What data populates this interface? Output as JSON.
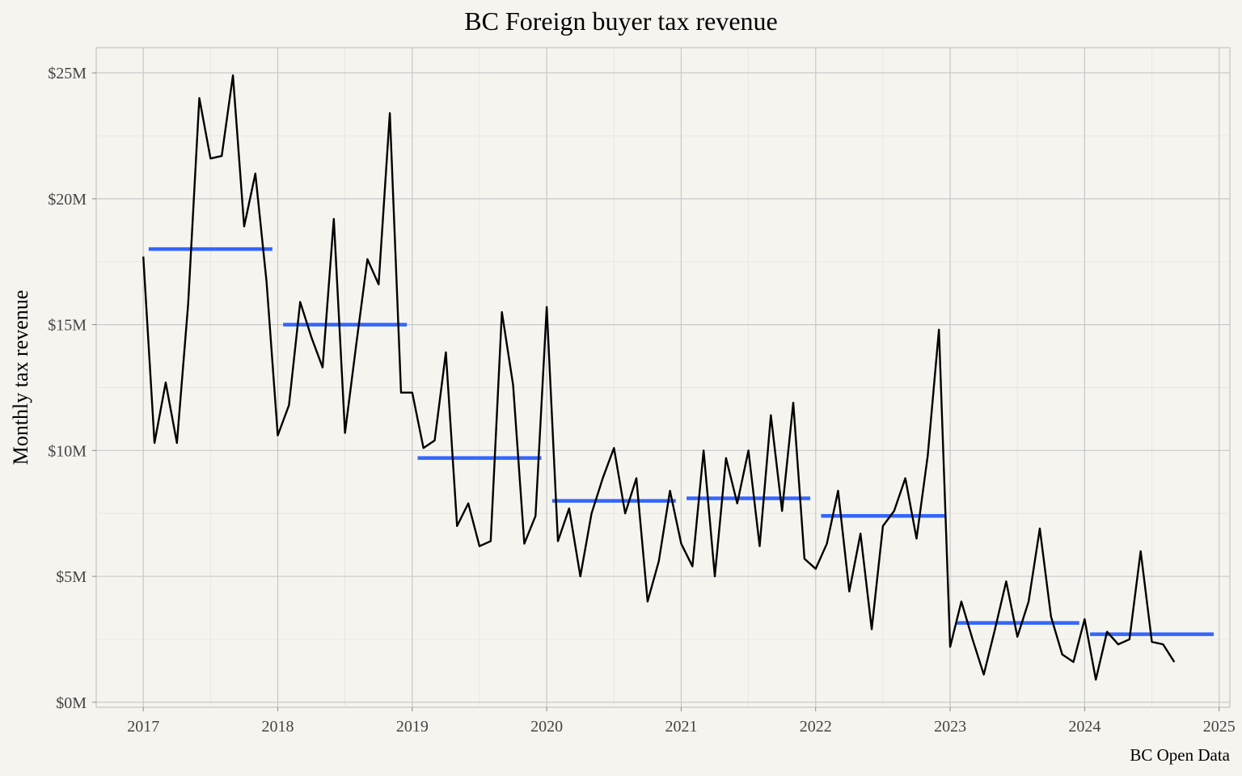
{
  "chart_data": {
    "type": "line",
    "title": "BC Foreign buyer tax revenue",
    "ylabel": "Monthly tax revenue",
    "xlabel": "",
    "caption": "BC Open Data",
    "x_ticks": [
      "2017",
      "2018",
      "2019",
      "2020",
      "2021",
      "2022",
      "2023",
      "2024",
      "2025"
    ],
    "y_ticks": [
      "$0M",
      "$5M",
      "$10M",
      "$15M",
      "$20M",
      "$25M"
    ],
    "y_tick_values": [
      0,
      5,
      10,
      15,
      20,
      25
    ],
    "xlim": [
      2016.65,
      2025.08
    ],
    "ylim": [
      -0.2,
      26.0
    ],
    "grid": true,
    "colors": {
      "line": "#000000",
      "annual_mean": "#3366ff",
      "background": "#f6f4ef",
      "grid_major": "#c8c8c8",
      "grid_minor": "#e6e4e0"
    },
    "series": [
      {
        "x": [
          "2017-01",
          "2017-02",
          "2017-03",
          "2017-04",
          "2017-05",
          "2017-06",
          "2017-07",
          "2017-08",
          "2017-09",
          "2017-10",
          "2017-11",
          "2017-12",
          "2018-01",
          "2018-02",
          "2018-03",
          "2018-04",
          "2018-05",
          "2018-06",
          "2018-07",
          "2018-08",
          "2018-09",
          "2018-10",
          "2018-11",
          "2018-12",
          "2019-01",
          "2019-02",
          "2019-03",
          "2019-04",
          "2019-05",
          "2019-06",
          "2019-07",
          "2019-08",
          "2019-09",
          "2019-10",
          "2019-11",
          "2019-12",
          "2020-01",
          "2020-02",
          "2020-03",
          "2020-04",
          "2020-05",
          "2020-06",
          "2020-07",
          "2020-08",
          "2020-09",
          "2020-10",
          "2020-11",
          "2020-12",
          "2021-01",
          "2021-02",
          "2021-03",
          "2021-04",
          "2021-05",
          "2021-06",
          "2021-07",
          "2021-08",
          "2021-09",
          "2021-10",
          "2021-11",
          "2021-12",
          "2022-01",
          "2022-02",
          "2022-03",
          "2022-04",
          "2022-05",
          "2022-06",
          "2022-07",
          "2022-08",
          "2022-09",
          "2022-10",
          "2022-11",
          "2022-12",
          "2023-01",
          "2023-02",
          "2023-03",
          "2023-04",
          "2023-05",
          "2023-06",
          "2023-07",
          "2023-08",
          "2023-09",
          "2023-10",
          "2023-11",
          "2023-12",
          "2024-01",
          "2024-02",
          "2024-03",
          "2024-04",
          "2024-05",
          "2024-06",
          "2024-07",
          "2024-08",
          "2024-09"
        ],
        "values": [
          17.7,
          10.3,
          12.7,
          10.3,
          15.8,
          24.0,
          21.6,
          21.7,
          24.9,
          18.9,
          21.0,
          16.7,
          10.6,
          11.8,
          15.9,
          14.5,
          13.3,
          19.2,
          10.7,
          14.2,
          17.6,
          16.6,
          23.4,
          12.3,
          12.3,
          10.1,
          10.4,
          13.9,
          7.0,
          7.9,
          6.2,
          6.4,
          15.5,
          12.6,
          6.3,
          7.4,
          15.7,
          6.4,
          7.7,
          5.0,
          7.5,
          8.9,
          10.1,
          7.5,
          8.9,
          4.0,
          5.6,
          8.4,
          6.3,
          5.4,
          10.0,
          5.0,
          9.7,
          7.9,
          10.0,
          6.2,
          11.4,
          7.6,
          11.9,
          5.7,
          5.3,
          6.3,
          8.4,
          4.4,
          6.7,
          2.9,
          7.0,
          7.6,
          8.9,
          6.5,
          9.8,
          14.8,
          2.2,
          4.0,
          2.5,
          1.1,
          2.9,
          4.8,
          2.6,
          4.0,
          6.9,
          3.4,
          1.9,
          1.6,
          3.3,
          0.9,
          2.8,
          2.3,
          2.5,
          6.0,
          2.4,
          2.3,
          1.6
        ]
      }
    ],
    "annual_means": [
      {
        "year": 2017,
        "value": 18.0
      },
      {
        "year": 2018,
        "value": 15.0
      },
      {
        "year": 2019,
        "value": 9.7
      },
      {
        "year": 2020,
        "value": 8.0
      },
      {
        "year": 2021,
        "value": 8.1
      },
      {
        "year": 2022,
        "value": 7.4
      },
      {
        "year": 2023,
        "value": 3.15
      },
      {
        "year": 2024,
        "value": 2.7
      }
    ]
  }
}
